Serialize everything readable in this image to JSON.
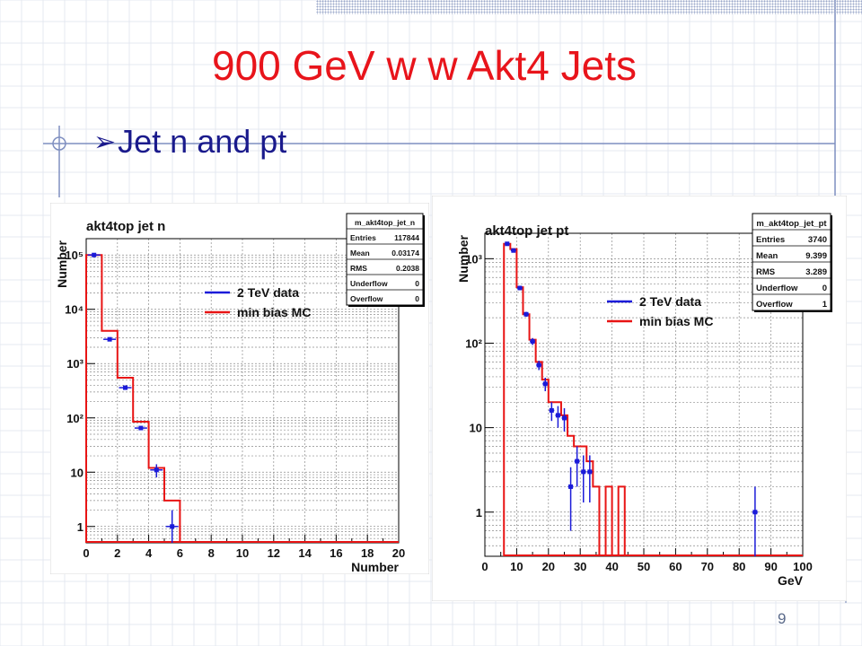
{
  "slide": {
    "title": "900 GeV w w Akt4 Jets",
    "bullet": "Jet n and pt",
    "page_number": "9"
  },
  "colors": {
    "title": "#e8141b",
    "bullet_text": "#1a1a8c",
    "data_series": "#1b1bd9",
    "mc_series": "#e81414"
  },
  "icons": {
    "bullet": "arrow-bullet-icon"
  },
  "chart_data": [
    {
      "type": "histogram",
      "title": "akt4top jet n",
      "xlabel": "Number",
      "ylabel": "Number",
      "yscale": "log",
      "xlim": [
        0,
        20
      ],
      "ylim": [
        0.5,
        200000
      ],
      "xticks": [
        0,
        2,
        4,
        6,
        8,
        10,
        12,
        14,
        16,
        18,
        20
      ],
      "yticks": [
        {
          "value": 1,
          "label": "1"
        },
        {
          "value": 10,
          "label": "10"
        },
        {
          "value": 100,
          "label": "10²"
        },
        {
          "value": 1000,
          "label": "10³"
        },
        {
          "value": 10000,
          "label": "10⁴"
        },
        {
          "value": 100000,
          "label": "10⁵"
        }
      ],
      "grid": true,
      "legend_placement": "top-center",
      "series": [
        {
          "name": "2 TeV data",
          "points": [
            {
              "x": 0.5,
              "y": 100000,
              "err": 0
            },
            {
              "x": 1.5,
              "y": 2800,
              "err": 0
            },
            {
              "x": 2.5,
              "y": 360,
              "err": 0
            },
            {
              "x": 3.5,
              "y": 65,
              "err": 0
            },
            {
              "x": 4.5,
              "y": 11,
              "err": 3
            },
            {
              "x": 5.5,
              "y": 1,
              "err": 1
            }
          ]
        },
        {
          "name": "min bias MC",
          "bins": [
            {
              "lo": 0,
              "hi": 1,
              "y": 100000
            },
            {
              "lo": 1,
              "hi": 2,
              "y": 4000
            },
            {
              "lo": 2,
              "hi": 3,
              "y": 550
            },
            {
              "lo": 3,
              "hi": 4,
              "y": 85
            },
            {
              "lo": 4,
              "hi": 5,
              "y": 12
            },
            {
              "lo": 5,
              "hi": 6,
              "y": 3
            }
          ]
        }
      ],
      "stats": {
        "name": "m_akt4top_jet_n",
        "rows": [
          {
            "label": "Entries",
            "value": "117844"
          },
          {
            "label": "Mean",
            "value": "0.03174"
          },
          {
            "label": "RMS",
            "value": "0.2038"
          },
          {
            "label": "Underflow",
            "value": "0"
          },
          {
            "label": "Overflow",
            "value": "0"
          }
        ]
      }
    },
    {
      "type": "histogram",
      "title": "akt4top jet pt",
      "xlabel": "GeV",
      "ylabel": "Number",
      "yscale": "log",
      "xlim": [
        0,
        100
      ],
      "ylim": [
        0.3,
        2000
      ],
      "xticks": [
        0,
        10,
        20,
        30,
        40,
        50,
        60,
        70,
        80,
        90,
        100
      ],
      "yticks": [
        {
          "value": 1,
          "label": "1"
        },
        {
          "value": 10,
          "label": "10"
        },
        {
          "value": 100,
          "label": "10²"
        },
        {
          "value": 1000,
          "label": "10³"
        }
      ],
      "grid": true,
      "legend_placement": "top-center",
      "series": [
        {
          "name": "2 TeV data",
          "points": [
            {
              "x": 7,
              "y": 1500,
              "err": 40
            },
            {
              "x": 9,
              "y": 1250,
              "err": 35
            },
            {
              "x": 11,
              "y": 450,
              "err": 21
            },
            {
              "x": 13,
              "y": 220,
              "err": 15
            },
            {
              "x": 15,
              "y": 105,
              "err": 10
            },
            {
              "x": 17,
              "y": 55,
              "err": 7
            },
            {
              "x": 19,
              "y": 33,
              "err": 6
            },
            {
              "x": 21,
              "y": 16,
              "err": 4
            },
            {
              "x": 23,
              "y": 14,
              "err": 4
            },
            {
              "x": 25,
              "y": 13,
              "err": 4
            },
            {
              "x": 27,
              "y": 2,
              "err": 1.4
            },
            {
              "x": 29,
              "y": 4,
              "err": 2
            },
            {
              "x": 31,
              "y": 3,
              "err": 1.7
            },
            {
              "x": 33,
              "y": 3,
              "err": 1.7
            },
            {
              "x": 85,
              "y": 1,
              "err": 1
            }
          ]
        },
        {
          "name": "min bias MC",
          "bins": [
            {
              "lo": 6,
              "hi": 8,
              "y": 1500
            },
            {
              "lo": 8,
              "hi": 10,
              "y": 1300
            },
            {
              "lo": 10,
              "hi": 12,
              "y": 460
            },
            {
              "lo": 12,
              "hi": 14,
              "y": 220
            },
            {
              "lo": 14,
              "hi": 16,
              "y": 110
            },
            {
              "lo": 16,
              "hi": 18,
              "y": 60
            },
            {
              "lo": 18,
              "hi": 20,
              "y": 37
            },
            {
              "lo": 20,
              "hi": 22,
              "y": 20
            },
            {
              "lo": 22,
              "hi": 24,
              "y": 20
            },
            {
              "lo": 24,
              "hi": 26,
              "y": 14
            },
            {
              "lo": 26,
              "hi": 28,
              "y": 8
            },
            {
              "lo": 28,
              "hi": 30,
              "y": 6
            },
            {
              "lo": 30,
              "hi": 32,
              "y": 6
            },
            {
              "lo": 32,
              "hi": 34,
              "y": 4
            },
            {
              "lo": 34,
              "hi": 36,
              "y": 2
            },
            {
              "lo": 38,
              "hi": 40,
              "y": 2
            },
            {
              "lo": 42,
              "hi": 44,
              "y": 2
            }
          ]
        }
      ],
      "stats": {
        "name": "m_akt4top_jet_pt",
        "rows": [
          {
            "label": "Entries",
            "value": "3740"
          },
          {
            "label": "Mean",
            "value": "9.399"
          },
          {
            "label": "RMS",
            "value": "3.289"
          },
          {
            "label": "Underflow",
            "value": "0"
          },
          {
            "label": "Overflow",
            "value": "1"
          }
        ]
      }
    }
  ]
}
